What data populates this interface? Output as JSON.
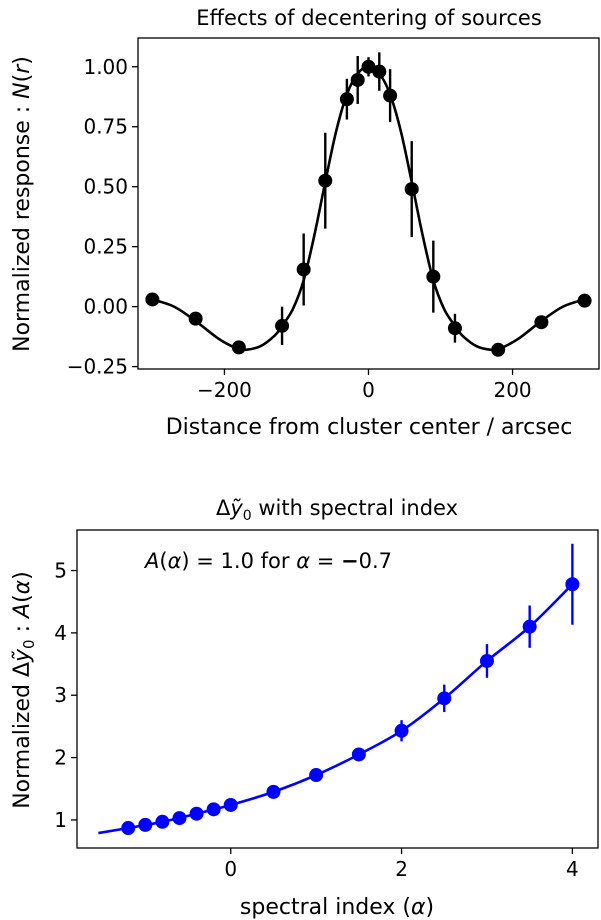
{
  "chart_data": [
    {
      "type": "line",
      "title": "Effects of decentering of sources",
      "xlabel": "Distance from cluster center / arcsec",
      "ylabel": "Normalized response : N(r)",
      "xlim": [
        -320,
        320
      ],
      "ylim": [
        -0.26,
        1.12
      ],
      "xticks": [
        -200,
        0,
        200
      ],
      "xtick_labels": [
        "−200",
        "0",
        "200"
      ],
      "yticks": [
        -0.25,
        0.0,
        0.25,
        0.5,
        0.75,
        1.0
      ],
      "ytick_labels": [
        "−0.25",
        "0.00",
        "0.25",
        "0.50",
        "0.75",
        "1.00"
      ],
      "grid": false,
      "colors": {
        "series": "#000000"
      },
      "series": [
        {
          "kind": "errorbar",
          "x": [
            -300,
            -240,
            -180,
            -120,
            -90,
            -60,
            -30,
            -15,
            0,
            15,
            30,
            60,
            90,
            120,
            180,
            240,
            300
          ],
          "y": [
            0.03,
            -0.05,
            -0.17,
            -0.08,
            0.155,
            0.525,
            0.865,
            0.945,
            1.0,
            0.98,
            0.88,
            0.49,
            0.125,
            -0.09,
            -0.18,
            -0.065,
            0.025
          ],
          "yerr": [
            0,
            0,
            0,
            0.08,
            0.15,
            0.2,
            0.085,
            0.1,
            0.04,
            0.08,
            0.11,
            0.2,
            0.15,
            0.06,
            0,
            0,
            0
          ]
        },
        {
          "kind": "curve",
          "x": [
            -300,
            -270,
            -240,
            -210,
            -190,
            -180,
            -170,
            -150,
            -130,
            -120,
            -105,
            -90,
            -75,
            -60,
            -45,
            -30,
            -15,
            0,
            15,
            30,
            45,
            60,
            75,
            90,
            105,
            120,
            130,
            150,
            170,
            180,
            190,
            210,
            240,
            270,
            300
          ],
          "y": [
            0.03,
            0.0,
            -0.06,
            -0.13,
            -0.165,
            -0.175,
            -0.18,
            -0.165,
            -0.12,
            -0.08,
            -0.01,
            0.11,
            0.3,
            0.52,
            0.73,
            0.885,
            0.972,
            1.0,
            0.972,
            0.885,
            0.73,
            0.52,
            0.3,
            0.11,
            -0.01,
            -0.08,
            -0.12,
            -0.165,
            -0.18,
            -0.175,
            -0.165,
            -0.13,
            -0.06,
            0.0,
            0.03
          ]
        }
      ]
    },
    {
      "type": "line",
      "title": "Δỹ₀ with spectral index",
      "xlabel": "spectral index (α)",
      "ylabel": "Normalized Δỹ₀ :  A(α)",
      "annotation": "A(α) = 1.0 for α = −0.7",
      "xlim": [
        -1.8,
        4.3
      ],
      "ylim": [
        0.55,
        5.65
      ],
      "xticks": [
        0,
        2,
        4
      ],
      "xtick_labels": [
        "0",
        "2",
        "4"
      ],
      "yticks": [
        1,
        2,
        3,
        4,
        5
      ],
      "ytick_labels": [
        "1",
        "2",
        "3",
        "4",
        "5"
      ],
      "grid": false,
      "colors": {
        "series": "#0000ff"
      },
      "series": [
        {
          "kind": "errorbar",
          "x": [
            -1.2,
            -1.0,
            -0.8,
            -0.6,
            -0.4,
            -0.2,
            0.0,
            0.5,
            1.0,
            1.5,
            2.0,
            2.5,
            3.0,
            3.5,
            4.0
          ],
          "y": [
            0.87,
            0.92,
            0.97,
            1.03,
            1.1,
            1.17,
            1.24,
            1.45,
            1.72,
            2.05,
            2.43,
            2.95,
            3.55,
            4.1,
            4.78
          ],
          "yerr": [
            0.0,
            0.0,
            0.0,
            0.0,
            0.0,
            0.0,
            0.0,
            0.0,
            0.0,
            0.1,
            0.17,
            0.22,
            0.27,
            0.34,
            0.65
          ]
        },
        {
          "kind": "curve",
          "x": [
            -1.55,
            -1.2,
            -0.8,
            -0.4,
            0.0,
            0.5,
            1.0,
            1.5,
            2.0,
            2.5,
            3.0,
            3.5,
            4.0
          ],
          "y": [
            0.79,
            0.87,
            0.97,
            1.1,
            1.24,
            1.45,
            1.72,
            2.05,
            2.43,
            2.95,
            3.55,
            4.1,
            4.78
          ]
        }
      ]
    }
  ]
}
